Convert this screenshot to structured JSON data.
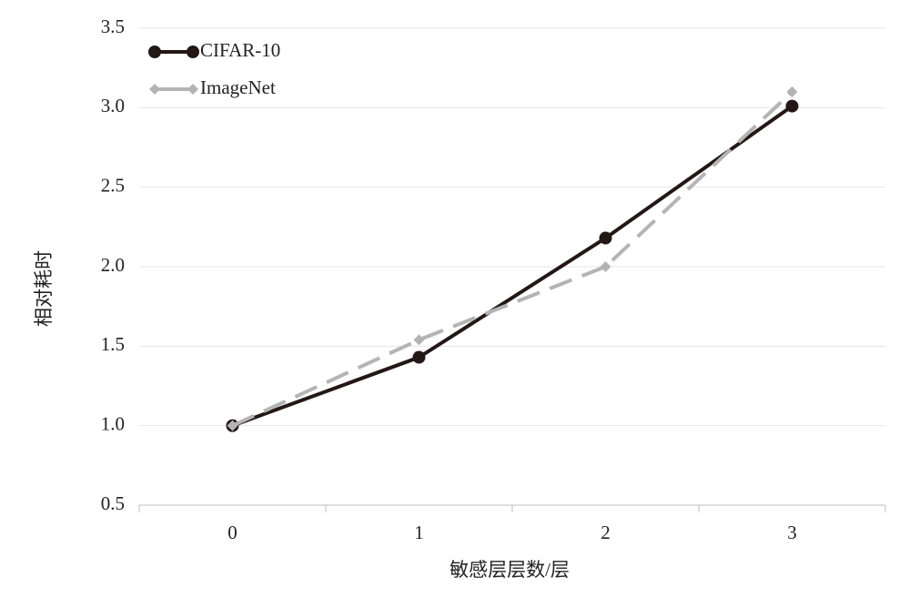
{
  "chart_data": {
    "type": "line",
    "x_label": "敏感层层数/层",
    "y_label": "相对耗时",
    "categories": [
      "0",
      "1",
      "2",
      "3"
    ],
    "series": [
      {
        "name": "CIFAR-10",
        "color": "#231815",
        "values": [
          1.0,
          1.43,
          2.18,
          3.01
        ]
      },
      {
        "name": "ImageNet",
        "color": "#b4b4b4",
        "values": [
          1.0,
          1.54,
          2.0,
          3.1
        ]
      }
    ],
    "ylim": [
      0.5,
      3.5
    ],
    "yticks": [
      0.5,
      {
        "value": 1,
        "label": "1.0"
      },
      1.5,
      {
        "value": 2,
        "label": "2.0"
      },
      2.5,
      {
        "value": 3,
        "label": "3.0"
      },
      3.5
    ],
    "grid": true,
    "legend": "top-left"
  }
}
